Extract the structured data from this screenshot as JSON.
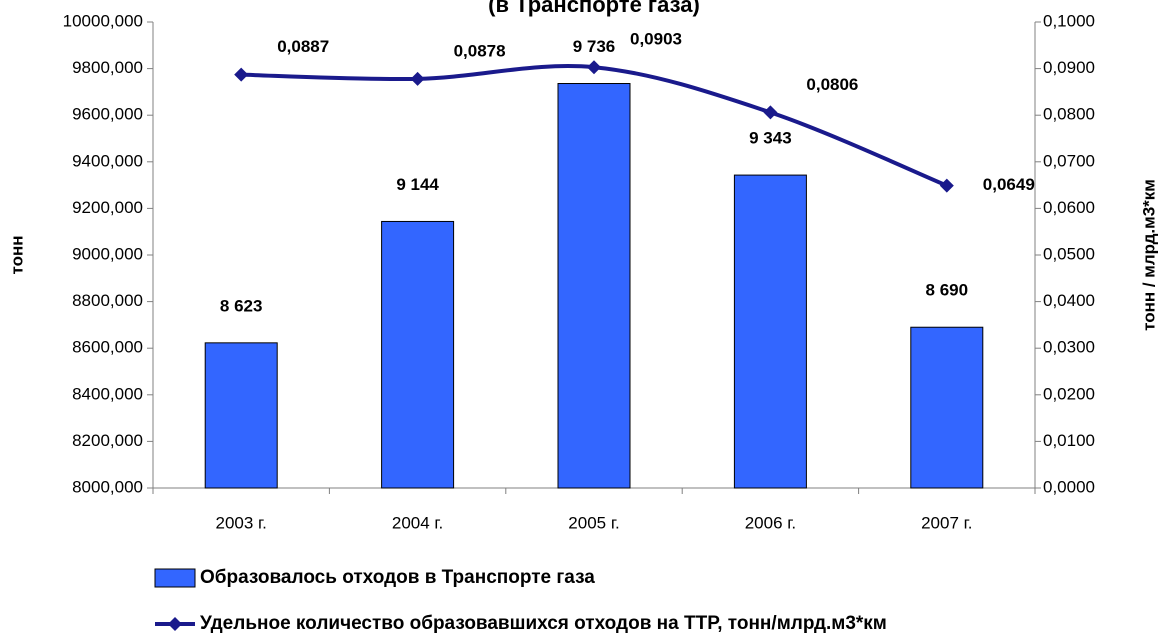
{
  "chart_data": {
    "type": "bar",
    "title": "(в Транспорте газа)",
    "categories": [
      "2003 г.",
      "2004 г.",
      "2005 г.",
      "2006 г.",
      "2007 г."
    ],
    "series": [
      {
        "name": "Образовалось отходов в Транспорте газа",
        "color": "#3366ff",
        "type": "bar",
        "values": [
          8623,
          9144,
          9736,
          9343,
          8690
        ],
        "value_labels": [
          "8 623",
          "9 144",
          "9 736",
          "9 343",
          "8 690"
        ]
      },
      {
        "name": "Удельное количество образовавшихся отходов на ТТР, тонн/млрд.м3*км",
        "color": "#1a1a8c",
        "type": "line",
        "axis": "y2",
        "values": [
          0.0887,
          0.0878,
          0.0903,
          0.0806,
          0.0649
        ],
        "value_labels": [
          "0,0887",
          "0,0878",
          "0,0903",
          "0,0806",
          "0,0649"
        ]
      }
    ],
    "ylabel": "тонн",
    "y2label": "тонн / млрд.м3*км",
    "ylim": [
      8000,
      10000
    ],
    "yticks": [
      {
        "value": 8000,
        "label": "8000,000"
      },
      {
        "value": 8200,
        "label": "8200,000"
      },
      {
        "value": 8400,
        "label": "8400,000"
      },
      {
        "value": 8600,
        "label": "8600,000"
      },
      {
        "value": 8800,
        "label": "8800,000"
      },
      {
        "value": 9000,
        "label": "9000,000"
      },
      {
        "value": 9200,
        "label": "9200,000"
      },
      {
        "value": 9400,
        "label": "9400,000"
      },
      {
        "value": 9600,
        "label": "9600,000"
      },
      {
        "value": 9800,
        "label": "9800,000"
      },
      {
        "value": 10000,
        "label": "10000,000"
      }
    ],
    "y2lim": [
      0,
      0.1
    ],
    "y2ticks": [
      {
        "value": 0,
        "label": "0,0000"
      },
      {
        "value": 0.01,
        "label": "0,0100"
      },
      {
        "value": 0.02,
        "label": "0,0200"
      },
      {
        "value": 0.03,
        "label": "0,0300"
      },
      {
        "value": 0.04,
        "label": "0,0400"
      },
      {
        "value": 0.05,
        "label": "0,0500"
      },
      {
        "value": 0.06,
        "label": "0,0600"
      },
      {
        "value": 0.07,
        "label": "0,0700"
      },
      {
        "value": 0.08,
        "label": "0,0800"
      },
      {
        "value": 0.09,
        "label": "0,0900"
      },
      {
        "value": 0.1,
        "label": "0,1000"
      }
    ],
    "legend": "bottom"
  }
}
